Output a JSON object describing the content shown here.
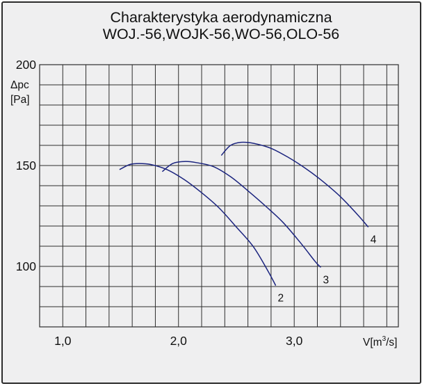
{
  "chart_data": {
    "type": "line",
    "title": [
      "Charakterystyka aerodynamiczna",
      "WOJ.-56,WOJK-56,WO-56,OLO-56"
    ],
    "xlabel": {
      "base": "V[m",
      "sup": "3",
      "tail": "/s]"
    },
    "ylabel": [
      "Δpc",
      "[Pa]"
    ],
    "xlim": [
      0.8,
      3.9
    ],
    "ylim": [
      70,
      200
    ],
    "x_ticks": [
      {
        "value": 1.0,
        "label": "1,0"
      },
      {
        "value": 2.0,
        "label": "2,0"
      },
      {
        "value": 3.0,
        "label": "3,0"
      }
    ],
    "y_ticks": [
      {
        "value": 100,
        "label": "100"
      },
      {
        "value": 150,
        "label": "150"
      },
      {
        "value": 200,
        "label": "200"
      }
    ],
    "grid": true,
    "grid_x_step": 0.2,
    "grid_y_step": 10,
    "line_color": "#1a237e",
    "series": [
      {
        "name": "2",
        "x": [
          1.49,
          1.58,
          1.66,
          1.76,
          1.9,
          2.05,
          2.2,
          2.35,
          2.5,
          2.65,
          2.78,
          2.84
        ],
        "y": [
          148,
          150.5,
          151,
          150.5,
          148,
          143,
          136.5,
          129,
          119.5,
          109.5,
          97,
          90.5
        ]
      },
      {
        "name": "3",
        "x": [
          1.86,
          1.95,
          2.05,
          2.15,
          2.3,
          2.45,
          2.6,
          2.75,
          2.9,
          3.05,
          3.18,
          3.23
        ],
        "y": [
          147,
          151,
          152,
          151.5,
          149.5,
          144.5,
          137.5,
          130,
          122,
          112,
          102.5,
          99.5
        ]
      },
      {
        "name": "4",
        "x": [
          2.37,
          2.45,
          2.54,
          2.65,
          2.8,
          2.95,
          3.1,
          3.25,
          3.4,
          3.55,
          3.64
        ],
        "y": [
          155,
          160,
          161.5,
          161,
          158.5,
          154,
          148.5,
          142,
          134.5,
          125.5,
          119.5
        ]
      }
    ]
  }
}
